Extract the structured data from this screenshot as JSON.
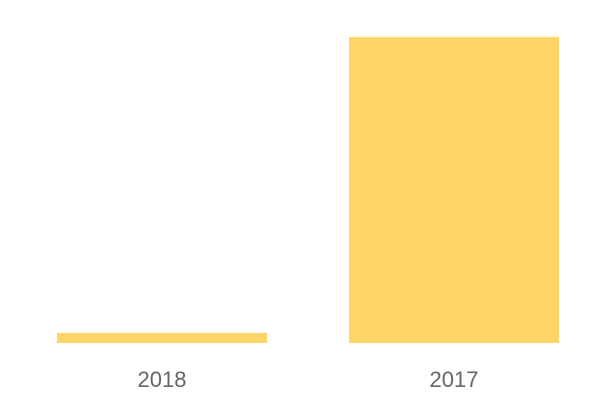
{
  "chart_data": {
    "type": "bar",
    "categories": [
      "2018",
      "2017"
    ],
    "values": [
      3.3,
      100
    ],
    "ylim": [
      0,
      100
    ],
    "grid": false,
    "axes_visible": false,
    "bar_color": "#FFD56A",
    "tick_label_color": "#666666"
  }
}
